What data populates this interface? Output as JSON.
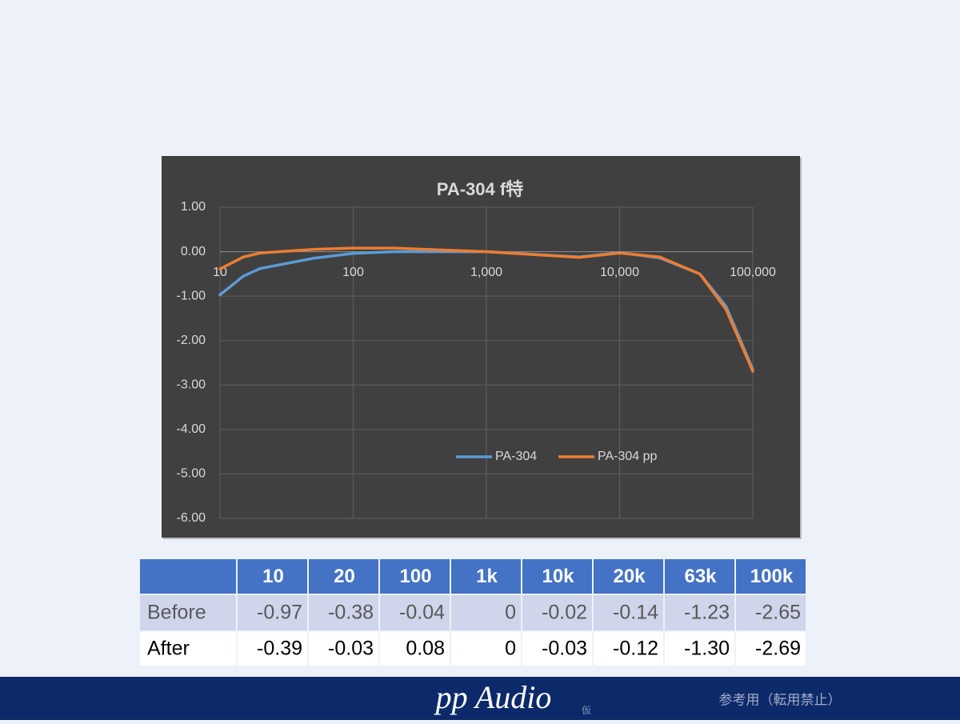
{
  "chart_data": {
    "type": "line",
    "title": "PA-304 f特",
    "x": [
      10,
      15,
      20,
      50,
      100,
      200,
      1000,
      5000,
      10000,
      20000,
      40000,
      63000,
      100000
    ],
    "series": [
      {
        "name": "PA-304",
        "color": "#5b9bd5",
        "values": [
          -0.97,
          -0.55,
          -0.38,
          -0.15,
          -0.04,
          0,
          0,
          -0.12,
          -0.02,
          -0.14,
          -0.5,
          -1.23,
          -2.65
        ]
      },
      {
        "name": "PA-304 pp",
        "color": "#ed7d31",
        "values": [
          -0.39,
          -0.12,
          -0.03,
          0.05,
          0.08,
          0.08,
          0,
          -0.13,
          -0.03,
          -0.12,
          -0.5,
          -1.3,
          -2.69
        ]
      }
    ],
    "xscale": "log",
    "xlim": [
      10,
      100000
    ],
    "xticks": [
      10,
      100,
      {
        "value": 1000,
        "label": "1,000"
      },
      {
        "value": 10000,
        "label": "10,000"
      },
      {
        "value": 100000,
        "label": "100,000"
      }
    ],
    "ylim": [
      -6,
      1
    ],
    "yticks": [
      {
        "value": 1,
        "label": "1.00"
      },
      {
        "value": 0,
        "label": "0.00"
      },
      {
        "value": -1,
        "label": "-1.00"
      },
      {
        "value": -2,
        "label": "-2.00"
      },
      {
        "value": -3,
        "label": "-3.00"
      },
      {
        "value": -4,
        "label": "-4.00"
      },
      {
        "value": -5,
        "label": "-5.00"
      },
      {
        "value": -6,
        "label": "-6.00"
      }
    ],
    "grid": true,
    "legend": "bottom"
  },
  "table": {
    "columns": [
      "10",
      "20",
      "100",
      "1k",
      "10k",
      "20k",
      "63k",
      "100k"
    ],
    "rows": [
      {
        "label": "Before",
        "cells": [
          "-0.97",
          "-0.38",
          "-0.04",
          "0",
          "-0.02",
          "-0.14",
          "-1.23",
          "-2.65"
        ]
      },
      {
        "label": "After",
        "cells": [
          "-0.39",
          "-0.03",
          "0.08",
          "0",
          "-0.03",
          "-0.12",
          "-1.30",
          "-2.69"
        ]
      }
    ]
  },
  "footer": {
    "brand": "pp Audio",
    "mark": "仮",
    "note": "参考用（転用禁止）"
  }
}
